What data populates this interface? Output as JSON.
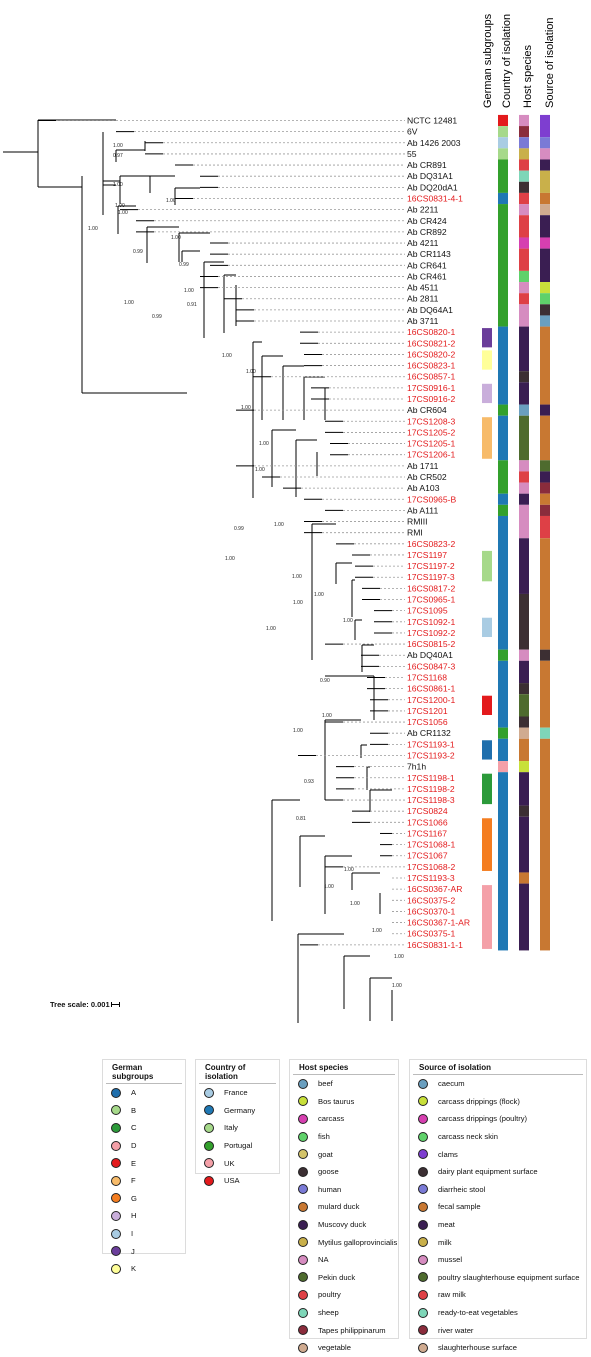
{
  "columns": [
    "German subgroups",
    "Country of isolation",
    "Host species",
    "Source of isolation"
  ],
  "tree_scale": {
    "label": "Tree scale: 0.001"
  },
  "branch_labels": [
    "1.00",
    "0.97",
    "1.00",
    "1.00",
    "1.00",
    "1.00",
    "0.99",
    "1.00",
    "1.00",
    "0.99",
    "1.00",
    "1.00",
    "0.91",
    "0.99",
    "1.00",
    "1.00",
    "1.00",
    "1.00",
    "1.00",
    "1.00",
    "0.99",
    "1.00",
    "1.00",
    "1.00",
    "1.00",
    "1.00",
    "1.00",
    "0.90",
    "1.00",
    "1.00",
    "0.93",
    "0.81",
    "1.00",
    "1.00",
    "1.00",
    "1.00",
    "1.00",
    "1.00"
  ],
  "taxa": [
    {
      "name": "NCTC 12481",
      "red": false,
      "g": null,
      "c": "USA",
      "h": "NA",
      "s": "clams"
    },
    {
      "name": "6V",
      "red": false,
      "g": null,
      "c": "Italy",
      "h": "Tapes philippinarum",
      "s": "clams"
    },
    {
      "name": "Ab 1426 2003",
      "red": false,
      "g": null,
      "c": "France",
      "h": "human",
      "s": "diarrheic stool"
    },
    {
      "name": "55",
      "red": false,
      "g": null,
      "c": "Italy",
      "h": "Mytilus galloprovincialis",
      "s": "mussel"
    },
    {
      "name": "Ab CR891",
      "red": false,
      "g": null,
      "c": "Portugal",
      "h": "poultry",
      "s": "meat"
    },
    {
      "name": "Ab DQ31A1",
      "red": false,
      "g": null,
      "c": "Portugal",
      "h": "sheep",
      "s": "milk"
    },
    {
      "name": "Ab DQ20dA1",
      "red": false,
      "g": null,
      "c": "Portugal",
      "h": "goose",
      "s": "milk"
    },
    {
      "name": "16CS0831-4-1",
      "red": true,
      "g": null,
      "c": "Germany",
      "h": "poultry",
      "s": "fecal sample"
    },
    {
      "name": "Ab 2211",
      "red": false,
      "g": null,
      "c": "Portugal",
      "h": "NA",
      "s": "slaughterhouse surface"
    },
    {
      "name": "Ab CR424",
      "red": false,
      "g": null,
      "c": "Portugal",
      "h": "poultry",
      "s": "meat"
    },
    {
      "name": "Ab CR892",
      "red": false,
      "g": null,
      "c": "Portugal",
      "h": "poultry",
      "s": "meat"
    },
    {
      "name": "Ab 4211",
      "red": false,
      "g": null,
      "c": "Portugal",
      "h": "carcass",
      "s": "carcass drippings (poultry)"
    },
    {
      "name": "Ab CR1143",
      "red": false,
      "g": null,
      "c": "Portugal",
      "h": "poultry",
      "s": "meat"
    },
    {
      "name": "Ab CR641",
      "red": false,
      "g": null,
      "c": "Portugal",
      "h": "poultry",
      "s": "meat"
    },
    {
      "name": "Ab CR461",
      "red": false,
      "g": null,
      "c": "Portugal",
      "h": "fish",
      "s": "meat"
    },
    {
      "name": "Ab 4511",
      "red": false,
      "g": null,
      "c": "Portugal",
      "h": "NA",
      "s": "carcass drippings (flock)"
    },
    {
      "name": "Ab 2811",
      "red": false,
      "g": null,
      "c": "Portugal",
      "h": "poultry",
      "s": "carcass neck skin"
    },
    {
      "name": "Ab DQ64A1",
      "red": false,
      "g": null,
      "c": "Portugal",
      "h": "NA",
      "s": "dairy plant equipment surface"
    },
    {
      "name": "Ab 3711",
      "red": false,
      "g": null,
      "c": "Portugal",
      "h": "NA",
      "s": "caecum"
    },
    {
      "name": "16CS0820-1",
      "red": true,
      "g": "J",
      "c": "Germany",
      "h": "Muscovy duck",
      "s": "fecal sample"
    },
    {
      "name": "16CS0821-2",
      "red": true,
      "g": "J",
      "c": "Germany",
      "h": "Muscovy duck",
      "s": "fecal sample"
    },
    {
      "name": "16CS0820-2",
      "red": true,
      "g": "K",
      "c": "Germany",
      "h": "Muscovy duck",
      "s": "fecal sample"
    },
    {
      "name": "16CS0823-1",
      "red": true,
      "g": "K",
      "c": "Germany",
      "h": "Muscovy duck",
      "s": "fecal sample"
    },
    {
      "name": "16CS0857-1",
      "red": true,
      "g": null,
      "c": "Germany",
      "h": "goose",
      "s": "fecal sample"
    },
    {
      "name": "17CS0916-1",
      "red": true,
      "g": "H",
      "c": "Germany",
      "h": "Muscovy duck",
      "s": "fecal sample"
    },
    {
      "name": "17CS0916-2",
      "red": true,
      "g": "H",
      "c": "Germany",
      "h": "Muscovy duck",
      "s": "fecal sample"
    },
    {
      "name": "Ab CR604",
      "red": false,
      "g": null,
      "c": "Portugal",
      "h": "beef",
      "s": "meat"
    },
    {
      "name": "17CS1208-3",
      "red": true,
      "g": "F",
      "c": "Germany",
      "h": "Pekin duck",
      "s": "fecal sample"
    },
    {
      "name": "17CS1205-2",
      "red": true,
      "g": "F",
      "c": "Germany",
      "h": "Pekin duck",
      "s": "fecal sample"
    },
    {
      "name": "17CS1205-1",
      "red": true,
      "g": "F",
      "c": "Germany",
      "h": "Pekin duck",
      "s": "fecal sample"
    },
    {
      "name": "17CS1206-1",
      "red": true,
      "g": "F",
      "c": "Germany",
      "h": "Pekin duck",
      "s": "fecal sample"
    },
    {
      "name": "Ab 1711",
      "red": false,
      "g": null,
      "c": "Portugal",
      "h": "NA",
      "s": "poultry slaughterhouse equipment surface"
    },
    {
      "name": "Ab CR502",
      "red": false,
      "g": null,
      "c": "Portugal",
      "h": "poultry",
      "s": "meat"
    },
    {
      "name": "Ab A103",
      "red": false,
      "g": null,
      "c": "Portugal",
      "h": "NA",
      "s": "river water"
    },
    {
      "name": "17CS0965-B",
      "red": true,
      "g": null,
      "c": "Germany",
      "h": "Muscovy duck",
      "s": "fecal sample"
    },
    {
      "name": "Ab A111",
      "red": false,
      "g": null,
      "c": "Portugal",
      "h": "NA",
      "s": "river water"
    },
    {
      "name": "RMIII",
      "red": false,
      "g": null,
      "c": "Germany",
      "h": "NA",
      "s": "raw milk"
    },
    {
      "name": "RMI",
      "red": false,
      "g": null,
      "c": "Germany",
      "h": "NA",
      "s": "raw milk"
    },
    {
      "name": "16CS0823-2",
      "red": true,
      "g": null,
      "c": "Germany",
      "h": "Muscovy duck",
      "s": "fecal sample"
    },
    {
      "name": "17CS1197",
      "red": true,
      "g": "B",
      "c": "Germany",
      "h": "Muscovy duck",
      "s": "fecal sample"
    },
    {
      "name": "17CS1197-2",
      "red": true,
      "g": "B",
      "c": "Germany",
      "h": "Muscovy duck",
      "s": "fecal sample"
    },
    {
      "name": "17CS1197-3",
      "red": true,
      "g": "B",
      "c": "Germany",
      "h": "Muscovy duck",
      "s": "fecal sample"
    },
    {
      "name": "16CS0817-2",
      "red": true,
      "g": null,
      "c": "Germany",
      "h": "Muscovy duck",
      "s": "fecal sample"
    },
    {
      "name": "17CS0965-1",
      "red": true,
      "g": null,
      "c": "Germany",
      "h": "goose",
      "s": "fecal sample"
    },
    {
      "name": "17CS1095",
      "red": true,
      "g": null,
      "c": "Germany",
      "h": "goose",
      "s": "fecal sample"
    },
    {
      "name": "17CS1092-1",
      "red": true,
      "g": "I",
      "c": "Germany",
      "h": "goose",
      "s": "fecal sample"
    },
    {
      "name": "17CS1092-2",
      "red": true,
      "g": "I",
      "c": "Germany",
      "h": "goose",
      "s": "fecal sample"
    },
    {
      "name": "16CS0815-2",
      "red": true,
      "g": null,
      "c": "Germany",
      "h": "goose",
      "s": "fecal sample"
    },
    {
      "name": "Ab DQ40A1",
      "red": false,
      "g": null,
      "c": "Portugal",
      "h": "NA",
      "s": "dairy plant equipment surface"
    },
    {
      "name": "16CS0847-3",
      "red": true,
      "g": null,
      "c": "Germany",
      "h": "Muscovy duck",
      "s": "fecal sample"
    },
    {
      "name": "17CS1168",
      "red": true,
      "g": null,
      "c": "Germany",
      "h": "Muscovy duck",
      "s": "fecal sample"
    },
    {
      "name": "16CS0861-1",
      "red": true,
      "g": null,
      "c": "Germany",
      "h": "goose",
      "s": "fecal sample"
    },
    {
      "name": "17CS1200-1",
      "red": true,
      "g": "E",
      "c": "Germany",
      "h": "Pekin duck",
      "s": "fecal sample"
    },
    {
      "name": "17CS1201",
      "red": true,
      "g": "E",
      "c": "Germany",
      "h": "Pekin duck",
      "s": "fecal sample"
    },
    {
      "name": "17CS1056",
      "red": true,
      "g": null,
      "c": "Germany",
      "h": "goose",
      "s": "fecal sample"
    },
    {
      "name": "Ab CR1132",
      "red": false,
      "g": null,
      "c": "Portugal",
      "h": "vegetable",
      "s": "ready-to-eat vegetables"
    },
    {
      "name": "17CS1193-1",
      "red": true,
      "g": "A",
      "c": "Germany",
      "h": "mulard duck",
      "s": "fecal sample"
    },
    {
      "name": "17CS1193-2",
      "red": true,
      "g": "A",
      "c": "Germany",
      "h": "mulard duck",
      "s": "fecal sample"
    },
    {
      "name": "7h1h",
      "red": false,
      "g": null,
      "c": "UK",
      "h": "Bos taurus",
      "s": "fecal sample"
    },
    {
      "name": "17CS1198-1",
      "red": true,
      "g": "C",
      "c": "Germany",
      "h": "Muscovy duck",
      "s": "fecal sample"
    },
    {
      "name": "17CS1198-2",
      "red": true,
      "g": "C",
      "c": "Germany",
      "h": "Muscovy duck",
      "s": "fecal sample"
    },
    {
      "name": "17CS1198-3",
      "red": true,
      "g": "C",
      "c": "Germany",
      "h": "Muscovy duck",
      "s": "fecal sample"
    },
    {
      "name": "17CS0824",
      "red": true,
      "g": null,
      "c": "Germany",
      "h": "goose",
      "s": "fecal sample"
    },
    {
      "name": "17CS1066",
      "red": true,
      "g": "G",
      "c": "Germany",
      "h": "Muscovy duck",
      "s": "fecal sample"
    },
    {
      "name": "17CS1167",
      "red": true,
      "g": "G",
      "c": "Germany",
      "h": "Muscovy duck",
      "s": "fecal sample"
    },
    {
      "name": "17CS1068-1",
      "red": true,
      "g": "G",
      "c": "Germany",
      "h": "Muscovy duck",
      "s": "fecal sample"
    },
    {
      "name": "17CS1067",
      "red": true,
      "g": "G",
      "c": "Germany",
      "h": "Muscovy duck",
      "s": "fecal sample"
    },
    {
      "name": "17CS1068-2",
      "red": true,
      "g": "G",
      "c": "Germany",
      "h": "Muscovy duck",
      "s": "fecal sample"
    },
    {
      "name": "17CS1193-3",
      "red": true,
      "g": null,
      "c": "Germany",
      "h": "mulard duck",
      "s": "fecal sample"
    },
    {
      "name": "16CS0367-AR",
      "red": true,
      "g": "D",
      "c": "Germany",
      "h": "Muscovy duck",
      "s": "fecal sample"
    },
    {
      "name": "16CS0375-2",
      "red": true,
      "g": "D",
      "c": "Germany",
      "h": "Muscovy duck",
      "s": "fecal sample"
    },
    {
      "name": "16CS0370-1",
      "red": true,
      "g": "D",
      "c": "Germany",
      "h": "Muscovy duck",
      "s": "fecal sample"
    },
    {
      "name": "16CS0367-1-AR",
      "red": true,
      "g": "D",
      "c": "Germany",
      "h": "Muscovy duck",
      "s": "fecal sample"
    },
    {
      "name": "16CS0375-1",
      "red": true,
      "g": "D",
      "c": "Germany",
      "h": "Muscovy duck",
      "s": "fecal sample"
    },
    {
      "name": "16CS0831-1-1",
      "red": true,
      "g": "D",
      "c": "Germany",
      "h": "Muscovy duck",
      "s": "fecal sample"
    }
  ],
  "legends": {
    "german": {
      "title": "German subgroups",
      "items": [
        {
          "label": "A",
          "color": "#1f6fad"
        },
        {
          "label": "B",
          "color": "#a6d98a"
        },
        {
          "label": "C",
          "color": "#2c9a3a"
        },
        {
          "label": "D",
          "color": "#f4a0a8"
        },
        {
          "label": "E",
          "color": "#e31a1c"
        },
        {
          "label": "F",
          "color": "#f7bb6a"
        },
        {
          "label": "G",
          "color": "#f47d20"
        },
        {
          "label": "H",
          "color": "#c9aedb"
        },
        {
          "label": "I",
          "color": "#a9cce3"
        },
        {
          "label": "J",
          "color": "#6a3d9a"
        },
        {
          "label": "K",
          "color": "#ffff99"
        }
      ]
    },
    "country": {
      "title": "Country of isolation",
      "items": [
        {
          "label": "France",
          "color": "#a9cce3"
        },
        {
          "label": "Germany",
          "color": "#1f78b4"
        },
        {
          "label": "Italy",
          "color": "#a6d98a"
        },
        {
          "label": "Portugal",
          "color": "#33a02c"
        },
        {
          "label": "UK",
          "color": "#f4a0a8"
        },
        {
          "label": "USA",
          "color": "#e31a1c"
        }
      ]
    },
    "host": {
      "title": "Host species",
      "items": [
        {
          "label": "beef",
          "color": "#6a9fbf"
        },
        {
          "label": "Bos taurus",
          "color": "#c8e03a"
        },
        {
          "label": "carcass",
          "color": "#d63fb0"
        },
        {
          "label": "fish",
          "color": "#5fd16a"
        },
        {
          "label": "goat",
          "color": "#d4c46a"
        },
        {
          "label": "goose",
          "color": "#3c2f33"
        },
        {
          "label": "human",
          "color": "#7a7ad6"
        },
        {
          "label": "mulard duck",
          "color": "#c87832"
        },
        {
          "label": "Muscovy duck",
          "color": "#3a1e52"
        },
        {
          "label": "Mytilus galloprovincialis",
          "color": "#c9b04a"
        },
        {
          "label": "NA",
          "color": "#d68cc0"
        },
        {
          "label": "Pekin duck",
          "color": "#4e6b2e"
        },
        {
          "label": "poultry",
          "color": "#de4046"
        },
        {
          "label": "sheep",
          "color": "#7ed6b8"
        },
        {
          "label": "Tapes philippinarum",
          "color": "#8a2c3c"
        },
        {
          "label": "vegetable",
          "color": "#d0ab90"
        }
      ]
    },
    "source": {
      "title": "Source of isolation",
      "items": [
        {
          "label": "caecum",
          "color": "#6a9fbf"
        },
        {
          "label": "carcass drippings (flock)",
          "color": "#c8e03a"
        },
        {
          "label": "carcass drippings (poultry)",
          "color": "#d63fb0"
        },
        {
          "label": "carcass neck skin",
          "color": "#5fd16a"
        },
        {
          "label": "clams",
          "color": "#7e3ed0"
        },
        {
          "label": "dairy plant equipment surface",
          "color": "#3c2f33"
        },
        {
          "label": "diarrheic stool",
          "color": "#7a7ad6"
        },
        {
          "label": "fecal sample",
          "color": "#c87832"
        },
        {
          "label": "meat",
          "color": "#3a1e52"
        },
        {
          "label": "milk",
          "color": "#c9b04a"
        },
        {
          "label": "mussel",
          "color": "#d68cc0"
        },
        {
          "label": "poultry slaughterhouse equipment surface",
          "color": "#4e6b2e"
        },
        {
          "label": "raw milk",
          "color": "#de4046"
        },
        {
          "label": "ready-to-eat vegetables",
          "color": "#7ed6b8"
        },
        {
          "label": "river water",
          "color": "#8a2c3c"
        },
        {
          "label": "slaughterhouse surface",
          "color": "#d0ab90"
        }
      ]
    }
  }
}
